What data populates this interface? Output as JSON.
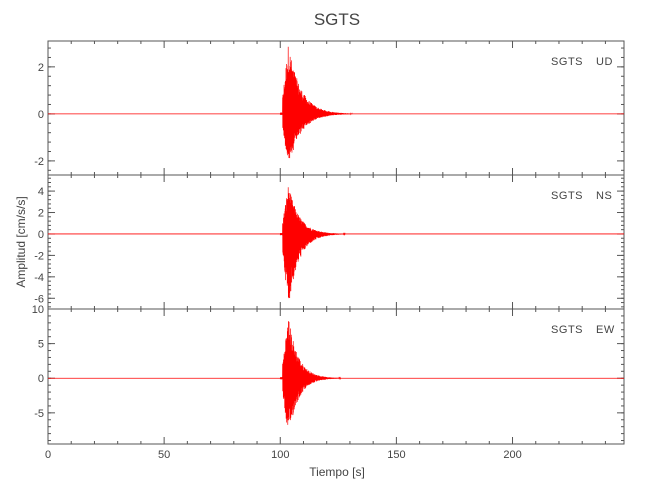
{
  "chart_data": {
    "type": "line",
    "title": "SGTS",
    "xlabel": "Tiempo [s]",
    "ylabel": "Amplitud [cm/s/s]",
    "xlim": [
      0,
      248
    ],
    "xticks": [
      0,
      50,
      100,
      150,
      200
    ],
    "line_color": "#ff0000",
    "panels": [
      {
        "station": "SGTS",
        "component": "UD",
        "ylim": [
          -2.6,
          3.1
        ],
        "yticks": [
          -2,
          0,
          2
        ],
        "event_onset": 101,
        "peak": 3.0,
        "trough": -2.3,
        "decay_end": 125
      },
      {
        "station": "SGTS",
        "component": "NS",
        "ylim": [
          -7.0,
          5.5
        ],
        "yticks": [
          -6,
          -4,
          -2,
          0,
          2,
          4
        ],
        "event_onset": 101,
        "peak": 4.6,
        "trough": -6.8,
        "decay_end": 122
      },
      {
        "station": "SGTS",
        "component": "EW",
        "ylim": [
          -9.5,
          10.0
        ],
        "yticks": [
          -5,
          0,
          5,
          10
        ],
        "event_onset": 101,
        "peak": 9.0,
        "trough": -8.6,
        "decay_end": 120
      }
    ]
  }
}
